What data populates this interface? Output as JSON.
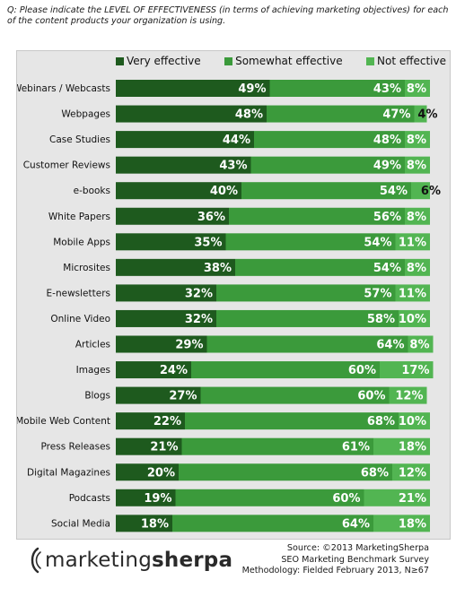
{
  "question": "Q: Please indicate the LEVEL OF EFFECTIVENESS (in terms of achieving marketing objectives) for each of the content products your organization is using.",
  "legend": [
    "Very effective",
    "Somewhat effective",
    "Not effective"
  ],
  "colors": {
    "very_effective": "#1e5a1e",
    "somewhat_effective": "#3b9a3b",
    "not_effective": "#52b552",
    "panel_bg": "#e6e6e6"
  },
  "logo": {
    "name_regular": "marketing",
    "name_bold": "sherpa"
  },
  "source_lines": [
    "Source: ©2013 MarketingSherpa",
    "SEO Marketing Benchmark Survey",
    "Methodology: Fielded February 2013, N≥67"
  ],
  "chart_data": {
    "type": "bar",
    "orientation": "horizontal",
    "stacked": true,
    "title": "",
    "xlabel": "",
    "ylabel": "",
    "xlim": [
      0,
      100
    ],
    "unit": "%",
    "legend_placement": "top",
    "categories": [
      "Webinars / Webcasts",
      "Webpages",
      "Case Studies",
      "Customer Reviews",
      "e-books",
      "White Papers",
      "Mobile Apps",
      "Microsites",
      "E-newsletters",
      "Online Video",
      "Articles",
      "Images",
      "Blogs",
      "Mobile Web Content",
      "Press Releases",
      "Digital Magazines",
      "Podcasts",
      "Social Media"
    ],
    "series": [
      {
        "name": "Very effective",
        "values": [
          49,
          48,
          44,
          43,
          40,
          36,
          35,
          38,
          32,
          32,
          29,
          24,
          27,
          22,
          21,
          20,
          19,
          18
        ]
      },
      {
        "name": "Somewhat effective",
        "values": [
          43,
          47,
          48,
          49,
          54,
          56,
          54,
          54,
          57,
          58,
          64,
          60,
          60,
          68,
          61,
          68,
          60,
          64
        ]
      },
      {
        "name": "Not effective",
        "values": [
          8,
          4,
          8,
          8,
          6,
          8,
          11,
          8,
          11,
          10,
          8,
          17,
          12,
          10,
          18,
          12,
          21,
          18
        ]
      }
    ],
    "value_labels": [
      [
        "49%",
        "43%",
        "8%"
      ],
      [
        "48%",
        "47%",
        "4%"
      ],
      [
        "44%",
        "48%",
        "8%"
      ],
      [
        "43%",
        "49%",
        "8%"
      ],
      [
        "40%",
        "54%",
        "6%"
      ],
      [
        "36%",
        "56%",
        "8%"
      ],
      [
        "35%",
        "54%",
        "11%"
      ],
      [
        "38%",
        "54%",
        "8%"
      ],
      [
        "32%",
        "57%",
        "11%"
      ],
      [
        "32%",
        "58%",
        "10%"
      ],
      [
        "29%",
        "64%",
        "8%"
      ],
      [
        "24%",
        "60%",
        "17%"
      ],
      [
        "27%",
        "60%",
        "12%"
      ],
      [
        "22%",
        "68%",
        "10%"
      ],
      [
        "21%",
        "61%",
        "18%"
      ],
      [
        "20%",
        "68%",
        "12%"
      ],
      [
        "19%",
        "60%",
        "21%"
      ],
      [
        "18%",
        "64%",
        "18%"
      ]
    ]
  }
}
